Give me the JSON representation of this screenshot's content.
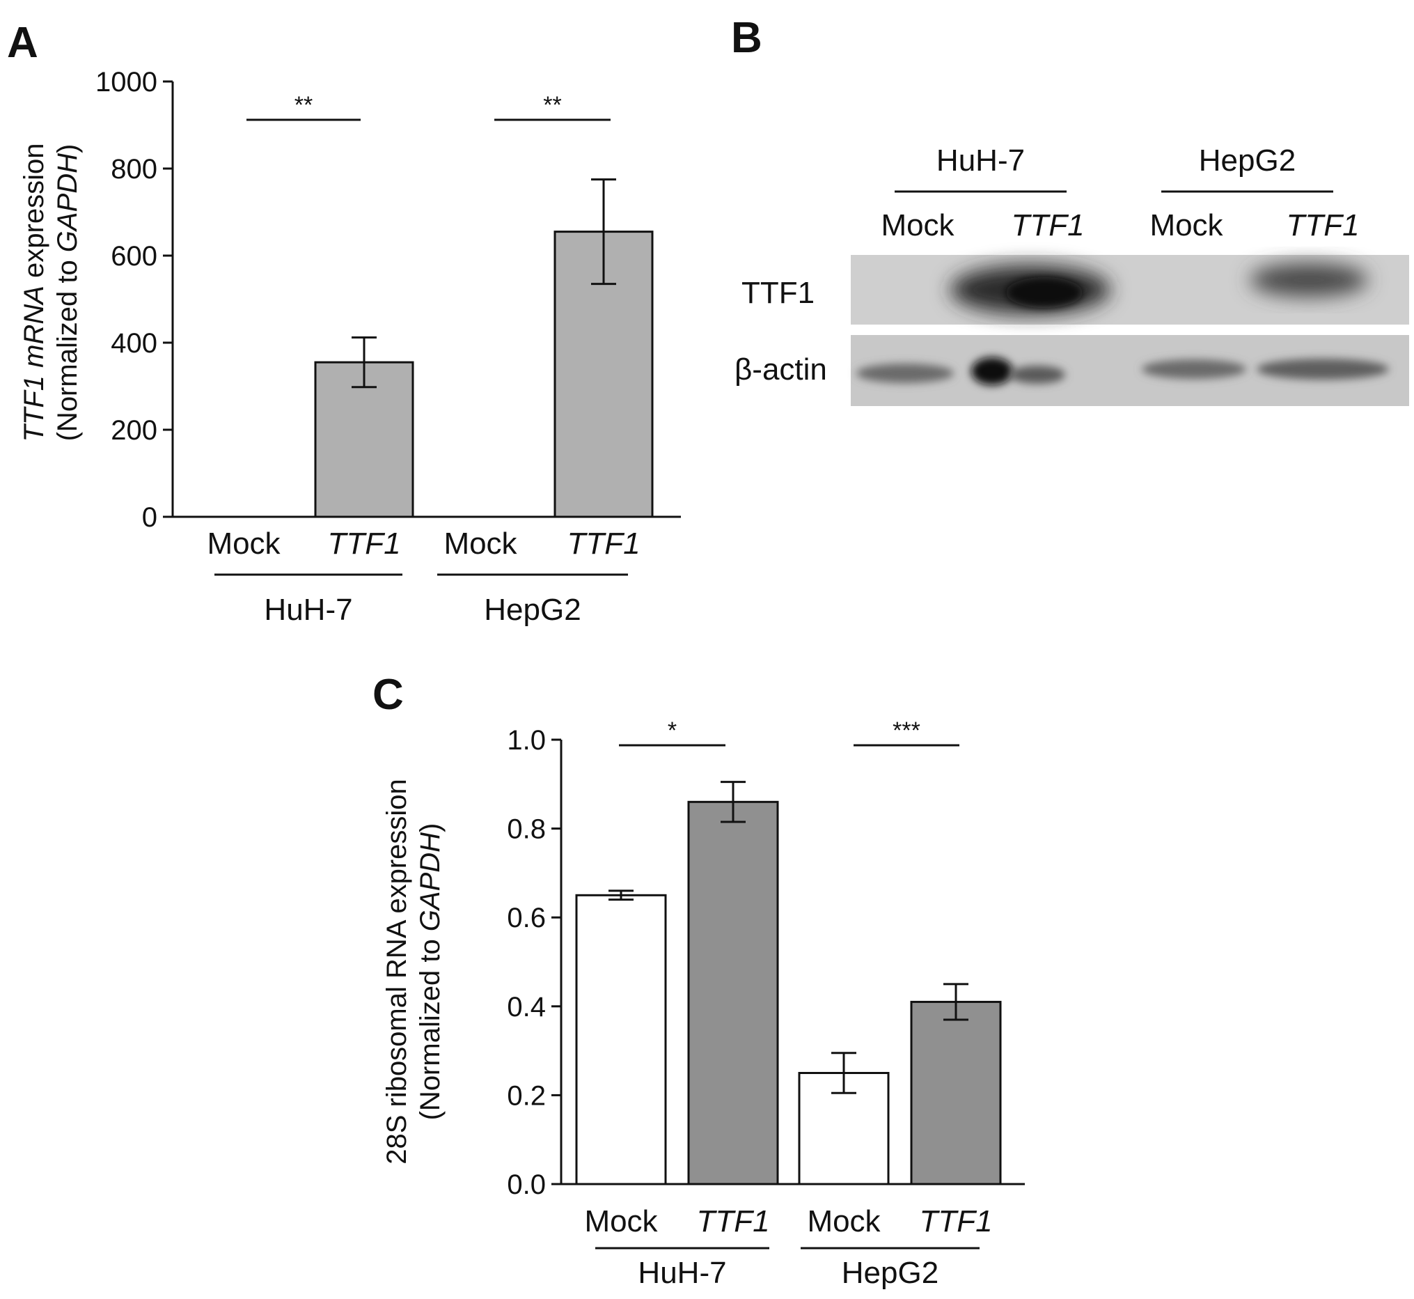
{
  "panels": {
    "A": "A",
    "B": "B",
    "C": "C"
  },
  "chart_data": [
    {
      "panel": "A",
      "type": "bar",
      "ylabel_italic": "TTF1  mRNA",
      "ylabel_rest": " expression",
      "ylabel2_prefix": "(Normalized to ",
      "ylabel2_gene": "GAPDH",
      "ylabel2_suffix": ")",
      "ylim": [
        0,
        1000
      ],
      "yticks": [
        "0",
        "200",
        "400",
        "600",
        "800",
        "1000"
      ],
      "bar_color": "#b0b0b0",
      "categories": [
        {
          "label": "Mock",
          "italic": false,
          "group": "HuH-7",
          "value": 0,
          "error": 0
        },
        {
          "label": "TTF1",
          "italic": true,
          "group": "HuH-7",
          "value": 355,
          "error": 57
        },
        {
          "label": "Mock",
          "italic": false,
          "group": "HepG2",
          "value": 0,
          "error": 0
        },
        {
          "label": "TTF1",
          "italic": true,
          "group": "HepG2",
          "value": 655,
          "error": 120
        }
      ],
      "groups": [
        "HuH-7",
        "HepG2"
      ],
      "significance": [
        "**",
        "**"
      ],
      "grid": false
    },
    {
      "panel": "C",
      "type": "bar",
      "ylabel": "28S ribosomal RNA expression",
      "ylabel2_prefix": "(Normalized to ",
      "ylabel2_gene": "GAPDH",
      "ylabel2_suffix": ")",
      "ylim": [
        0,
        1.0
      ],
      "yticks": [
        "0.0",
        "0.2",
        "0.4",
        "0.6",
        "0.8",
        "1.0"
      ],
      "categories": [
        {
          "label": "Mock",
          "italic": false,
          "group": "HuH-7",
          "value": 0.65,
          "error": 0.01,
          "color": "#ffffff"
        },
        {
          "label": "TTF1",
          "italic": true,
          "group": "HuH-7",
          "value": 0.86,
          "error": 0.045,
          "color": "#909090"
        },
        {
          "label": "Mock",
          "italic": false,
          "group": "HepG2",
          "value": 0.25,
          "error": 0.045,
          "color": "#ffffff"
        },
        {
          "label": "TTF1",
          "italic": true,
          "group": "HepG2",
          "value": 0.41,
          "error": 0.04,
          "color": "#909090"
        }
      ],
      "groups": [
        "HuH-7",
        "HepG2"
      ],
      "significance": [
        "*",
        "***"
      ],
      "grid": false
    }
  ],
  "blot": {
    "groups": [
      "HuH-7",
      "HepG2"
    ],
    "lanes": [
      {
        "label": "Mock",
        "italic": false
      },
      {
        "label": "TTF1",
        "italic": true
      },
      {
        "label": "Mock",
        "italic": false
      },
      {
        "label": "TTF1",
        "italic": true
      }
    ],
    "rows": [
      "TTF1",
      "β-actin"
    ]
  }
}
